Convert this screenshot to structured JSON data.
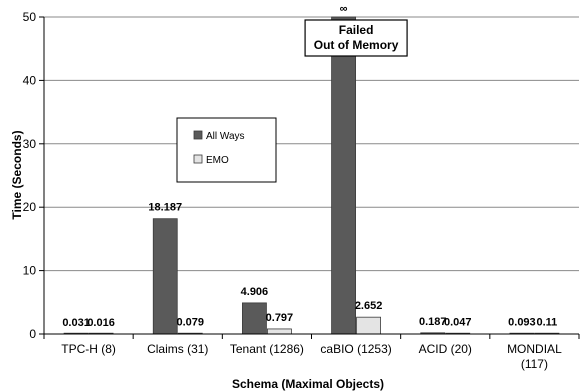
{
  "chart_data": {
    "type": "bar",
    "xlabel": "Schema (Maximal Objects)",
    "ylabel": "Time (Seconds)",
    "ylim": [
      0,
      50
    ],
    "yticks": [
      0,
      10,
      20,
      30,
      40,
      50
    ],
    "grid": "horizontal",
    "categories": [
      [
        "TPC-H (8)"
      ],
      [
        "Claims (31)"
      ],
      [
        "Tenant (1286)"
      ],
      [
        "caBIO (1253)"
      ],
      [
        "ACID (20)"
      ],
      [
        "MONDIAL",
        "(117)"
      ]
    ],
    "series": [
      {
        "name": "All Ways",
        "color": "#5a5a5a",
        "values": [
          0.031,
          18.187,
          4.906,
          50,
          0.187,
          0.093
        ],
        "labels": [
          "0.031",
          "18.187",
          "4.906",
          "∞",
          "0.187",
          "0.093"
        ]
      },
      {
        "name": "EMO",
        "color": "#e4e4e4",
        "values": [
          0.016,
          0.079,
          0.797,
          2.652,
          0.047,
          0.11
        ],
        "labels": [
          "0.016",
          "0.079",
          "0.797",
          "2.652",
          "0.047",
          "0.11"
        ]
      }
    ],
    "legend": {
      "position": "inside-upper-left"
    },
    "annotations": [
      {
        "category_index": 3,
        "lines": [
          "Failed",
          "Out of Memory"
        ]
      }
    ]
  }
}
